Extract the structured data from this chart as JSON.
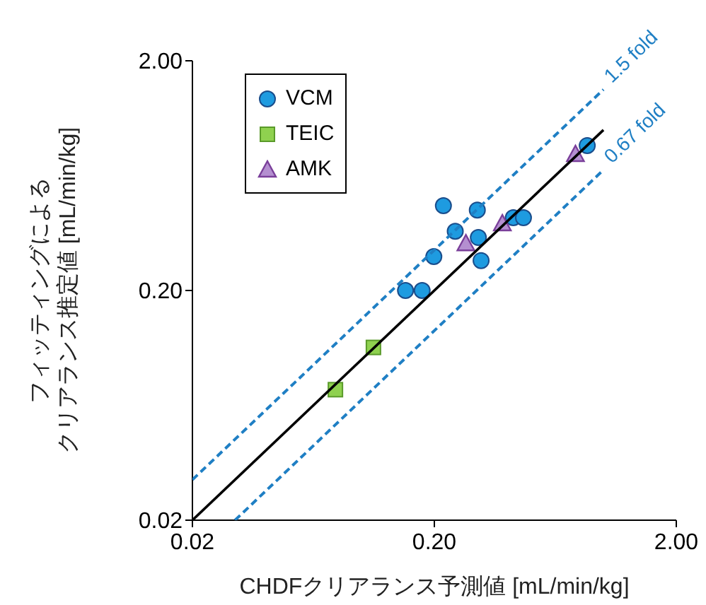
{
  "chart_data": {
    "type": "scatter",
    "xlabel": "CHDFクリアランス予測値 [mL/min/kg]",
    "ylabel": "フィッティングによるクリアランス推定値 [mL/min/kg]",
    "log": "xy",
    "xlim": [
      0.02,
      2
    ],
    "ylim": [
      0.02,
      2
    ],
    "xticks": [
      0.02,
      {
        "value": 0.2,
        "label": "0.20"
      },
      {
        "value": 2,
        "label": "2.00"
      }
    ],
    "yticks": [
      0.02,
      {
        "value": 0.2,
        "label": "0.20"
      },
      {
        "value": 2,
        "label": "2.00"
      }
    ],
    "grid": false,
    "legend": "top left",
    "series": [
      {
        "name": "VCM",
        "marker": "circle",
        "color": "#1e9be0",
        "x": [
          0.218,
          0.301,
          0.244,
          0.304,
          0.199,
          0.312,
          0.152,
          0.178,
          0.424,
          0.467,
          0.857
        ],
        "values": [
          0.468,
          0.448,
          0.362,
          0.34,
          0.281,
          0.27,
          0.2,
          0.2,
          0.415,
          0.415,
          0.855
        ]
      },
      {
        "name": "TEIC",
        "marker": "square",
        "color": "#8fd14f",
        "x": [
          0.112,
          0.078
        ],
        "values": [
          0.113,
          0.074
        ]
      },
      {
        "name": "AMK",
        "marker": "triangle",
        "color": "#b48fd0",
        "x": [
          0.27,
          0.382,
          0.766
        ],
        "values": [
          0.321,
          0.392,
          0.785
        ]
      },
      {
        "type": "line",
        "color": "#000000",
        "line_style": "solid",
        "x": [
          0.02,
          1.0
        ],
        "values": [
          0.02,
          1.0
        ]
      },
      {
        "name": "1.5 fold",
        "type": "line",
        "color": "#1f7fc4",
        "line_style": "dashed",
        "x": [
          0.02,
          1.0
        ],
        "values": [
          0.03,
          1.5
        ]
      },
      {
        "name": "0.67 fold",
        "type": "line",
        "color": "#1f7fc4",
        "line_style": "dashed",
        "x": [
          0.03,
          1.0
        ],
        "values": [
          0.02,
          0.67
        ]
      }
    ]
  }
}
